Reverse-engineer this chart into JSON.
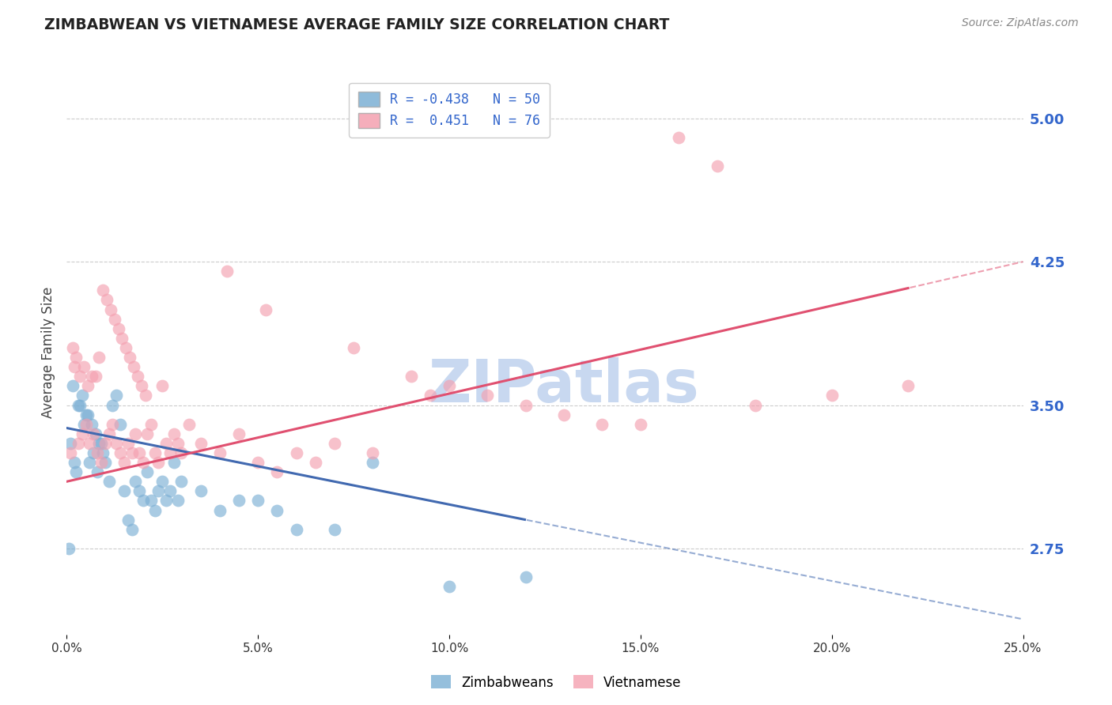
{
  "title": "ZIMBABWEAN VS VIETNAMESE AVERAGE FAMILY SIZE CORRELATION CHART",
  "source": "Source: ZipAtlas.com",
  "ylabel": "Average Family Size",
  "xlabel_ticks": [
    "0.0%",
    "5.0%",
    "10.0%",
    "15.0%",
    "20.0%",
    "25.0%"
  ],
  "xlabel_vals": [
    0.0,
    5.0,
    10.0,
    15.0,
    20.0,
    25.0
  ],
  "yticks": [
    2.75,
    3.5,
    4.25,
    5.0
  ],
  "xmin": 0.0,
  "xmax": 25.0,
  "ymin": 2.3,
  "ymax": 5.25,
  "zim_R": -0.438,
  "zim_N": 50,
  "viet_R": 0.451,
  "viet_N": 76,
  "zim_color": "#7bafd4",
  "viet_color": "#f4a0b0",
  "zim_line_color": "#4169b0",
  "viet_line_color": "#e05070",
  "watermark": "ZIPatlas",
  "watermark_color": "#c8d8f0",
  "legend_label_zim": "Zimbabweans",
  "legend_label_viet": "Vietnamese",
  "zim_intercept": 3.38,
  "zim_slope": -0.04,
  "viet_intercept": 3.1,
  "viet_slope": 0.046,
  "zim_data_xmax": 12.0,
  "viet_data_xmax": 22.0,
  "zim_x": [
    0.05,
    0.1,
    0.15,
    0.2,
    0.25,
    0.3,
    0.4,
    0.5,
    0.6,
    0.7,
    0.8,
    0.9,
    1.0,
    1.1,
    1.2,
    1.3,
    1.4,
    1.5,
    1.6,
    1.7,
    1.8,
    1.9,
    2.0,
    2.1,
    2.2,
    2.3,
    2.4,
    2.5,
    2.6,
    2.7,
    2.8,
    2.9,
    3.0,
    3.5,
    4.0,
    4.5,
    5.0,
    5.5,
    6.0,
    7.0,
    0.35,
    0.45,
    0.55,
    0.65,
    0.75,
    0.85,
    0.95,
    8.0,
    12.0,
    10.0
  ],
  "zim_y": [
    2.75,
    3.3,
    3.6,
    3.2,
    3.15,
    3.5,
    3.55,
    3.45,
    3.2,
    3.25,
    3.15,
    3.3,
    3.2,
    3.1,
    3.5,
    3.55,
    3.4,
    3.05,
    2.9,
    2.85,
    3.1,
    3.05,
    3.0,
    3.15,
    3.0,
    2.95,
    3.05,
    3.1,
    3.0,
    3.05,
    3.2,
    3.0,
    3.1,
    3.05,
    2.95,
    3.0,
    3.0,
    2.95,
    2.85,
    2.85,
    3.5,
    3.4,
    3.45,
    3.4,
    3.35,
    3.3,
    3.25,
    3.2,
    2.6,
    2.55
  ],
  "viet_x": [
    0.1,
    0.15,
    0.2,
    0.25,
    0.3,
    0.35,
    0.4,
    0.45,
    0.5,
    0.55,
    0.6,
    0.65,
    0.7,
    0.75,
    0.8,
    0.85,
    0.9,
    0.95,
    1.0,
    1.05,
    1.1,
    1.15,
    1.2,
    1.25,
    1.3,
    1.35,
    1.4,
    1.45,
    1.5,
    1.55,
    1.6,
    1.65,
    1.7,
    1.75,
    1.8,
    1.85,
    1.9,
    1.95,
    2.0,
    2.05,
    2.1,
    2.2,
    2.3,
    2.4,
    2.5,
    2.6,
    2.7,
    2.8,
    2.9,
    3.0,
    3.5,
    4.0,
    4.5,
    5.0,
    5.5,
    6.0,
    6.5,
    7.0,
    8.0,
    9.0,
    10.0,
    11.0,
    12.0,
    13.0,
    14.0,
    15.0,
    16.0,
    17.0,
    18.0,
    20.0,
    22.0,
    3.2,
    4.2,
    5.2,
    7.5,
    9.5
  ],
  "viet_y": [
    3.25,
    3.8,
    3.7,
    3.75,
    3.3,
    3.65,
    3.35,
    3.7,
    3.4,
    3.6,
    3.3,
    3.65,
    3.35,
    3.65,
    3.25,
    3.75,
    3.2,
    4.1,
    3.3,
    4.05,
    3.35,
    4.0,
    3.4,
    3.95,
    3.3,
    3.9,
    3.25,
    3.85,
    3.2,
    3.8,
    3.3,
    3.75,
    3.25,
    3.7,
    3.35,
    3.65,
    3.25,
    3.6,
    3.2,
    3.55,
    3.35,
    3.4,
    3.25,
    3.2,
    3.6,
    3.3,
    3.25,
    3.35,
    3.3,
    3.25,
    3.3,
    3.25,
    3.35,
    3.2,
    3.15,
    3.25,
    3.2,
    3.3,
    3.25,
    3.65,
    3.6,
    3.55,
    3.5,
    3.45,
    3.4,
    3.4,
    4.9,
    4.75,
    3.5,
    3.55,
    3.6,
    3.4,
    4.2,
    4.0,
    3.8,
    3.55
  ]
}
